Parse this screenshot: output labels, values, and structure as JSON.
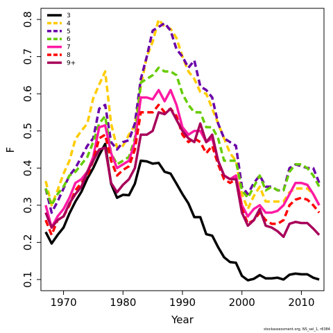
{
  "chart_data": {
    "type": "line",
    "title": "",
    "xlabel": "Year",
    "ylabel": "F",
    "xlim": [
      1966.2,
      2013.8
    ],
    "ylim": [
      0.07,
      0.83
    ],
    "xticks": [
      1970,
      1980,
      1990,
      2000,
      2010
    ],
    "yticks": [
      0.1,
      0.2,
      0.3,
      0.4,
      0.5,
      0.6,
      0.7,
      0.8
    ],
    "legend_position": "top-left",
    "grid": false,
    "credit": "stockassessment.org, NS_sel_1, r6384",
    "x": [
      1967,
      1968,
      1969,
      1970,
      1971,
      1972,
      1973,
      1974,
      1975,
      1976,
      1977,
      1978,
      1979,
      1980,
      1981,
      1982,
      1983,
      1984,
      1985,
      1986,
      1987,
      1988,
      1989,
      1990,
      1991,
      1992,
      1993,
      1994,
      1995,
      1996,
      1997,
      1998,
      1999,
      2000,
      2001,
      2002,
      2003,
      2004,
      2005,
      2006,
      2007,
      2008,
      2009,
      2010,
      2011,
      2012,
      2013
    ],
    "series": [
      {
        "name": "3",
        "color": "#000000",
        "dash": "solid",
        "values": [
          0.228,
          0.197,
          0.22,
          0.24,
          0.278,
          0.31,
          0.336,
          0.372,
          0.4,
          0.435,
          0.465,
          0.358,
          0.32,
          0.328,
          0.327,
          0.358,
          0.42,
          0.418,
          0.412,
          0.414,
          0.39,
          0.385,
          0.358,
          0.33,
          0.305,
          0.268,
          0.268,
          0.222,
          0.218,
          0.187,
          0.16,
          0.147,
          0.145,
          0.11,
          0.098,
          0.102,
          0.112,
          0.103,
          0.103,
          0.105,
          0.1,
          0.113,
          0.116,
          0.114,
          0.114,
          0.105,
          0.1
        ]
      },
      {
        "name": "4",
        "color": "#ffcc00",
        "dash": "dashed",
        "values": [
          0.365,
          0.3,
          0.34,
          0.385,
          0.42,
          0.478,
          0.5,
          0.52,
          0.588,
          0.625,
          0.66,
          0.52,
          0.455,
          0.46,
          0.49,
          0.515,
          0.62,
          0.7,
          0.74,
          0.8,
          0.78,
          0.775,
          0.75,
          0.7,
          0.66,
          0.64,
          0.605,
          0.6,
          0.56,
          0.52,
          0.48,
          0.44,
          0.42,
          0.33,
          0.29,
          0.325,
          0.35,
          0.31,
          0.31,
          0.31,
          0.31,
          0.335,
          0.345,
          0.345,
          0.345,
          0.33,
          0.3
        ]
      },
      {
        "name": "5",
        "color": "#6a00a8",
        "dash": "dashed",
        "values": [
          0.345,
          0.28,
          0.31,
          0.345,
          0.38,
          0.4,
          0.43,
          0.46,
          0.48,
          0.56,
          0.57,
          0.47,
          0.45,
          0.47,
          0.475,
          0.52,
          0.64,
          0.7,
          0.77,
          0.78,
          0.79,
          0.77,
          0.72,
          0.7,
          0.67,
          0.69,
          0.62,
          0.61,
          0.59,
          0.52,
          0.48,
          0.47,
          0.46,
          0.35,
          0.33,
          0.36,
          0.38,
          0.35,
          0.35,
          0.34,
          0.34,
          0.4,
          0.41,
          0.405,
          0.4,
          0.4,
          0.36
        ]
      },
      {
        "name": "6",
        "color": "#66cc00",
        "dash": "dashed",
        "values": [
          0.345,
          0.3,
          0.33,
          0.35,
          0.38,
          0.39,
          0.41,
          0.43,
          0.47,
          0.52,
          0.54,
          0.44,
          0.41,
          0.42,
          0.43,
          0.48,
          0.63,
          0.64,
          0.65,
          0.67,
          0.66,
          0.66,
          0.65,
          0.6,
          0.57,
          0.55,
          0.55,
          0.51,
          0.51,
          0.48,
          0.42,
          0.42,
          0.42,
          0.34,
          0.32,
          0.35,
          0.38,
          0.34,
          0.35,
          0.34,
          0.34,
          0.39,
          0.41,
          0.41,
          0.4,
          0.38,
          0.35
        ]
      },
      {
        "name": "7",
        "color": "#ff1aa3",
        "dash": "solid",
        "values": [
          0.3,
          0.24,
          0.27,
          0.29,
          0.32,
          0.36,
          0.37,
          0.39,
          0.43,
          0.51,
          0.515,
          0.44,
          0.4,
          0.41,
          0.42,
          0.47,
          0.59,
          0.59,
          0.585,
          0.61,
          0.58,
          0.61,
          0.57,
          0.51,
          0.49,
          0.5,
          0.5,
          0.47,
          0.48,
          0.42,
          0.38,
          0.37,
          0.38,
          0.3,
          0.27,
          0.29,
          0.3,
          0.28,
          0.28,
          0.285,
          0.3,
          0.33,
          0.36,
          0.36,
          0.355,
          0.33,
          0.3
        ]
      },
      {
        "name": "8",
        "color": "#ff0000",
        "dash": "dashed",
        "values": [
          0.26,
          0.22,
          0.26,
          0.27,
          0.3,
          0.34,
          0.36,
          0.38,
          0.42,
          0.48,
          0.49,
          0.42,
          0.38,
          0.395,
          0.405,
          0.45,
          0.55,
          0.55,
          0.55,
          0.57,
          0.55,
          0.56,
          0.54,
          0.49,
          0.47,
          0.48,
          0.47,
          0.44,
          0.46,
          0.41,
          0.37,
          0.36,
          0.37,
          0.29,
          0.25,
          0.26,
          0.28,
          0.26,
          0.25,
          0.25,
          0.26,
          0.3,
          0.315,
          0.32,
          0.315,
          0.3,
          0.28
        ]
      },
      {
        "name": "9+",
        "color": "#a8005a",
        "dash": "solid",
        "values": [
          0.28,
          0.24,
          0.26,
          0.27,
          0.305,
          0.33,
          0.35,
          0.39,
          0.42,
          0.45,
          0.455,
          0.36,
          0.335,
          0.355,
          0.37,
          0.4,
          0.49,
          0.49,
          0.5,
          0.55,
          0.545,
          0.56,
          0.53,
          0.5,
          0.48,
          0.47,
          0.52,
          0.47,
          0.49,
          0.42,
          0.38,
          0.37,
          0.37,
          0.28,
          0.245,
          0.26,
          0.29,
          0.245,
          0.24,
          0.23,
          0.215,
          0.25,
          0.255,
          0.252,
          0.252,
          0.237,
          0.22
        ]
      }
    ]
  }
}
